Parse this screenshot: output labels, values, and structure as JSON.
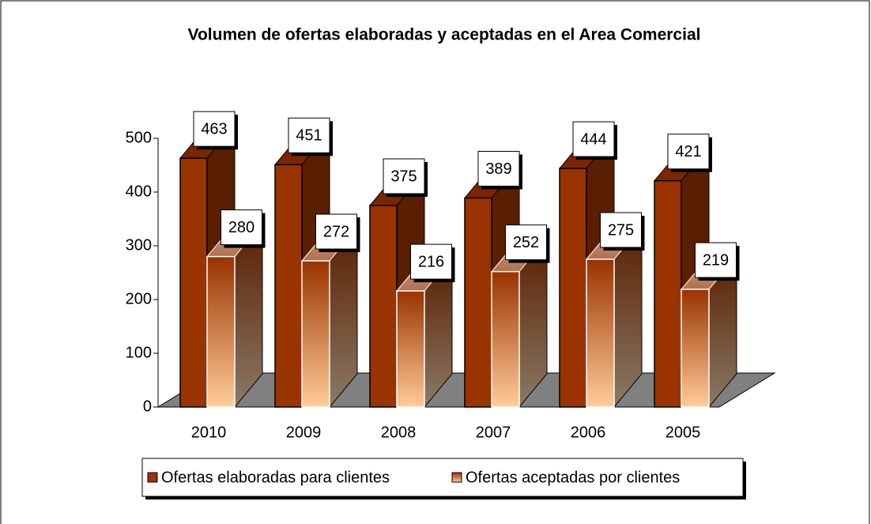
{
  "chart_data": {
    "type": "bar3d",
    "title": "Volumen de ofertas elaboradas y aceptadas en el Area Comercial",
    "categories": [
      "2010",
      "2009",
      "2008",
      "2007",
      "2006",
      "2005"
    ],
    "series": [
      {
        "name": "Ofertas elaboradas para clientes",
        "color": "#993300",
        "values": [
          463,
          451,
          375,
          389,
          444,
          421
        ]
      },
      {
        "name": "Ofertas aceptadas por clientes",
        "color": "#ffcc99",
        "values": [
          280,
          272,
          216,
          252,
          275,
          219
        ]
      }
    ],
    "ylim": [
      0,
      500
    ],
    "yticks": [
      0,
      100,
      200,
      300,
      400,
      500
    ],
    "legend": "bottom"
  }
}
